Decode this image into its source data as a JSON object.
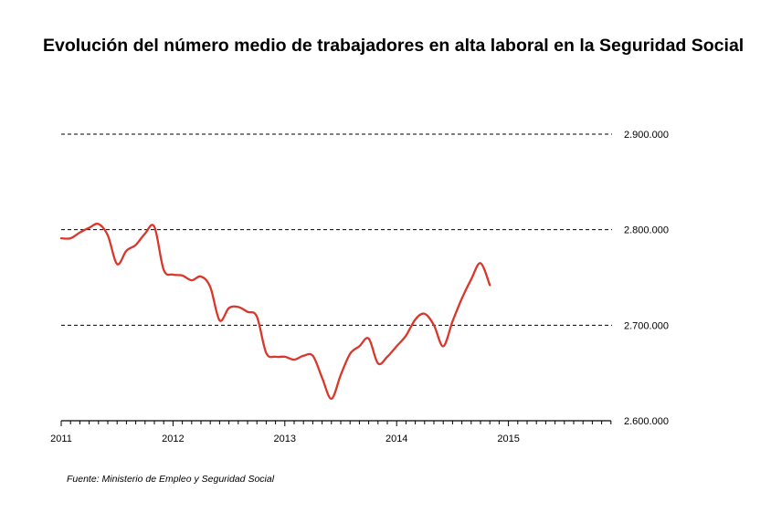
{
  "title": "Evolución del número medio de trabajadores en alta laboral en la Seguridad Social",
  "source": "Fuente: Ministerio de Empleo y Seguridad Social",
  "colors": {
    "series": "#d9372b",
    "grid": "#000000",
    "axis": "#000000"
  },
  "chart_data": {
    "type": "line",
    "title": "Evolución del número medio de trabajadores en alta laboral en la Seguridad Social",
    "xlabel": "",
    "ylabel": "",
    "x_ticks": [
      "2011",
      "2012",
      "2013",
      "2014",
      "2015"
    ],
    "y_ticks": [
      "2.600.000",
      "2.700.000",
      "2.800.000",
      "2.900.000"
    ],
    "y_tick_values": [
      2600000,
      2700000,
      2800000,
      2900000
    ],
    "xlim": [
      "2011-01",
      "2015-12"
    ],
    "ylim": [
      2600000,
      2900000
    ],
    "grid": "horizontal dashed",
    "legend": "none",
    "series": [
      {
        "x": [
          "2011-01",
          "2011-02",
          "2011-03",
          "2011-04",
          "2011-05",
          "2011-06",
          "2011-07",
          "2011-08",
          "2011-09",
          "2011-10",
          "2011-11",
          "2011-12",
          "2012-01",
          "2012-02",
          "2012-03",
          "2012-04",
          "2012-05",
          "2012-06",
          "2012-07",
          "2012-08",
          "2012-09",
          "2012-10",
          "2012-11",
          "2012-12",
          "2013-01",
          "2013-02",
          "2013-03",
          "2013-04",
          "2013-05",
          "2013-06",
          "2013-07",
          "2013-08",
          "2013-09",
          "2013-10",
          "2013-11",
          "2013-12",
          "2014-01",
          "2014-02",
          "2014-03",
          "2014-04",
          "2014-05",
          "2014-06",
          "2014-07",
          "2014-08",
          "2014-09",
          "2014-10",
          "2014-11",
          "2014-12",
          "2015-01"
        ],
        "values": [
          2791000,
          2791000,
          2797000,
          2802000,
          2806000,
          2794000,
          2764000,
          2778000,
          2784000,
          2796000,
          2803000,
          2758000,
          2753000,
          2752000,
          2747000,
          2751000,
          2740000,
          2705000,
          2718000,
          2719000,
          2714000,
          2709000,
          2671000,
          2667000,
          2667000,
          2664000,
          2668000,
          2668000,
          2645000,
          2623000,
          2648000,
          2670000,
          2678000,
          2686000,
          2660000,
          2667000,
          2678000,
          2689000,
          2706000,
          2712000,
          2700000,
          2678000,
          2704000,
          2728000,
          2748000,
          2765000,
          2742000,
          null,
          null
        ]
      }
    ]
  }
}
